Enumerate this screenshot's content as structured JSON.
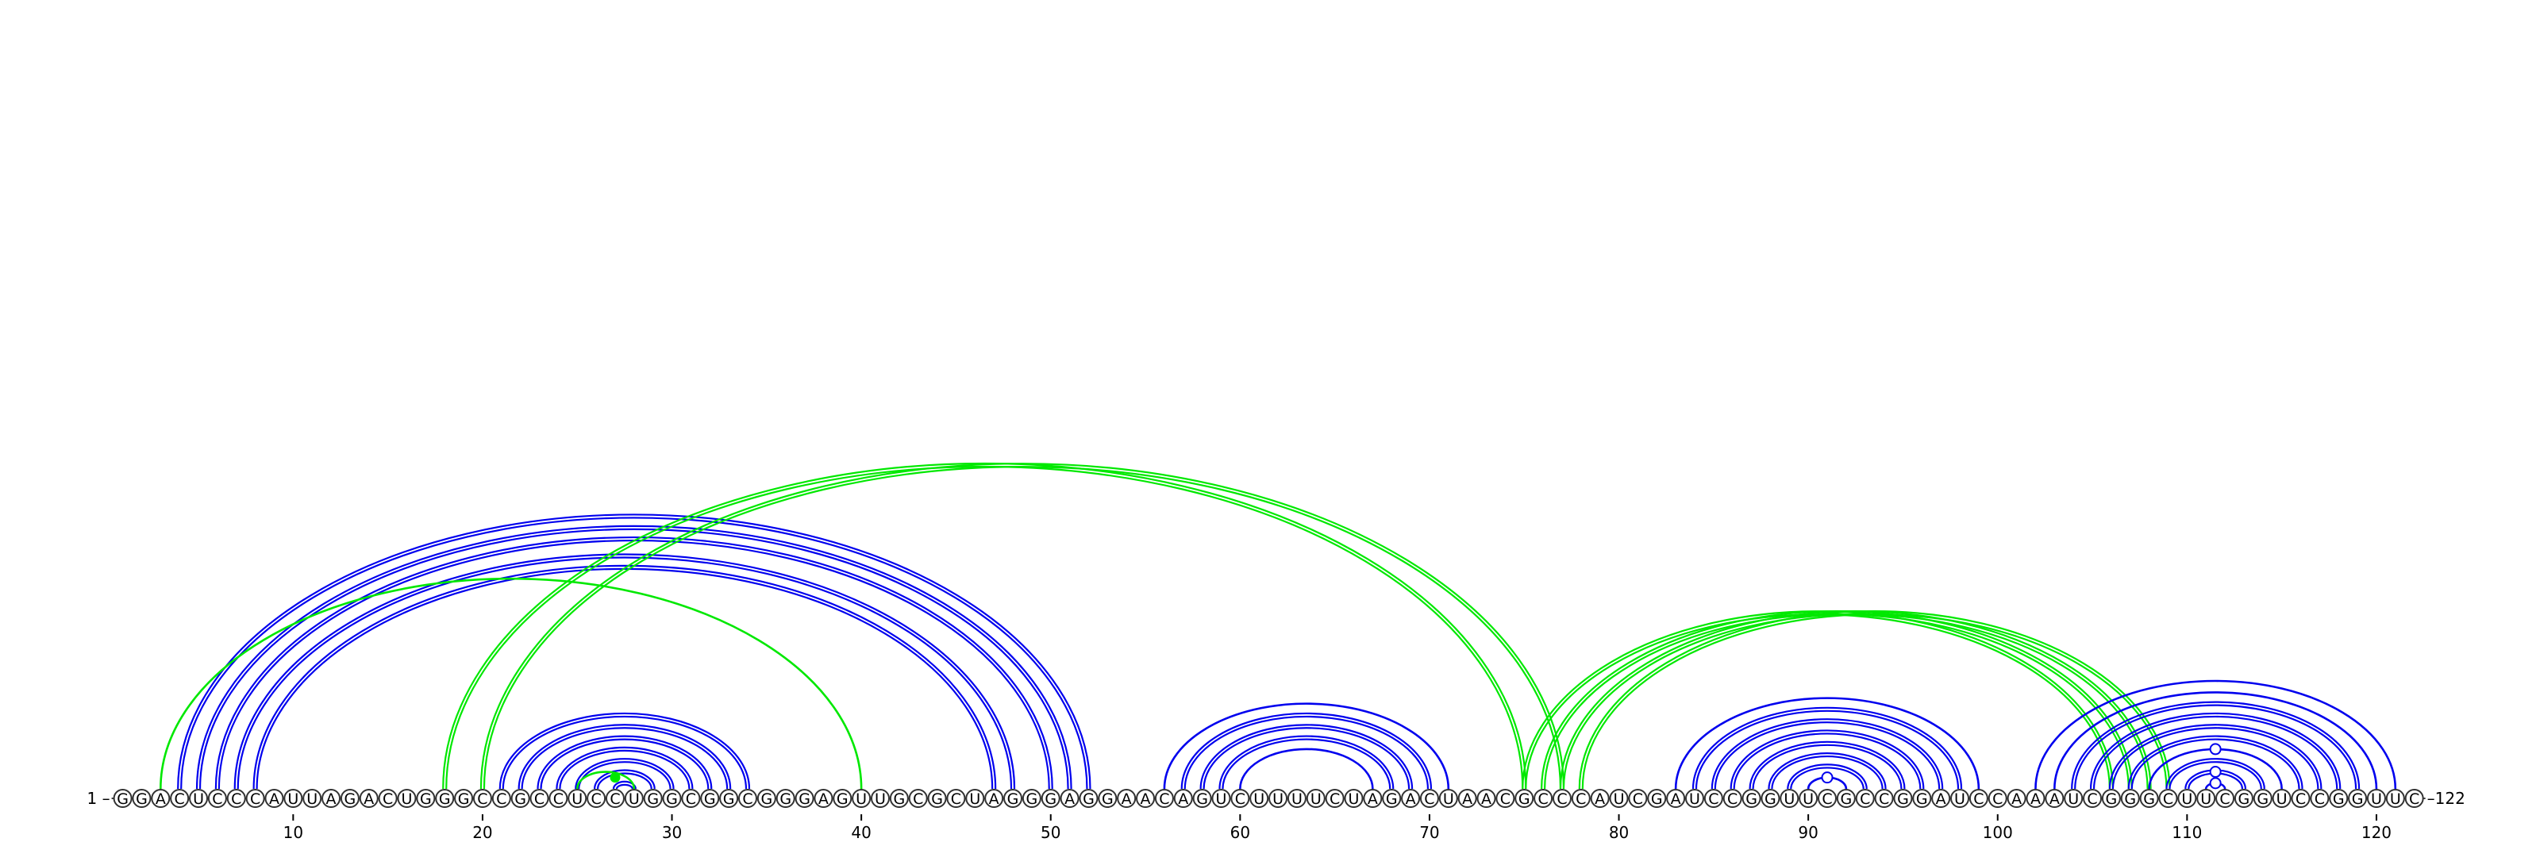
{
  "sequence": "GGACUCCCAUUAGACUGGGCCGCCUCCUGGCGGCGGGAGUUGCGCUAGGGAGGAACAGUCUUUUCUAGACUAACGCCCAUCGAUCCGGUUCGCCGGAUCCAAAUCGGGCUUCGGUCCGGUUC",
  "start_label": "1 –",
  "end_label": "–122",
  "ticks": [
    10,
    20,
    30,
    40,
    50,
    60,
    70,
    80,
    90,
    100,
    110,
    120
  ],
  "colors": {
    "blue": "#0000ee",
    "green": "#00e800",
    "nucleotide_outline": "#333333"
  },
  "arcs": [
    {
      "i": 5,
      "j": 51,
      "color": "blue",
      "style": "double"
    },
    {
      "i": 6,
      "j": 50,
      "color": "blue",
      "style": "double"
    },
    {
      "i": 4,
      "j": 52,
      "color": "blue",
      "style": "double"
    },
    {
      "i": 7,
      "j": 48,
      "color": "blue",
      "style": "double"
    },
    {
      "i": 8,
      "j": 47,
      "color": "blue",
      "style": "double"
    },
    {
      "i": 3,
      "j": 40,
      "color": "green",
      "style": "single"
    },
    {
      "i": 18,
      "j": 75,
      "color": "green",
      "style": "double"
    },
    {
      "i": 20,
      "j": 77,
      "color": "green",
      "style": "double"
    },
    {
      "i": 21,
      "j": 34,
      "color": "blue",
      "style": "double"
    },
    {
      "i": 22,
      "j": 33,
      "color": "blue",
      "style": "double"
    },
    {
      "i": 23,
      "j": 32,
      "color": "blue",
      "style": "double"
    },
    {
      "i": 24,
      "j": 31,
      "color": "blue",
      "style": "double"
    },
    {
      "i": 25,
      "j": 30,
      "color": "blue",
      "style": "double"
    },
    {
      "i": 26,
      "j": 29,
      "color": "blue",
      "style": "double"
    },
    {
      "i": 27,
      "j": 28,
      "color": "blue",
      "style": "double"
    },
    {
      "i": 25,
      "j": 28,
      "color": "green",
      "style": "single"
    },
    {
      "i": 56,
      "j": 71,
      "color": "blue",
      "style": "single"
    },
    {
      "i": 57,
      "j": 70,
      "color": "blue",
      "style": "double"
    },
    {
      "i": 58,
      "j": 69,
      "color": "blue",
      "style": "double"
    },
    {
      "i": 59,
      "j": 68,
      "color": "blue",
      "style": "double"
    },
    {
      "i": 60,
      "j": 67,
      "color": "blue",
      "style": "single"
    },
    {
      "i": 75,
      "j": 106,
      "color": "green",
      "style": "double"
    },
    {
      "i": 76,
      "j": 107,
      "color": "green",
      "style": "double"
    },
    {
      "i": 77,
      "j": 108,
      "color": "green",
      "style": "double"
    },
    {
      "i": 78,
      "j": 109,
      "color": "green",
      "style": "double"
    },
    {
      "i": 83,
      "j": 99,
      "color": "blue",
      "style": "single"
    },
    {
      "i": 84,
      "j": 98,
      "color": "blue",
      "style": "double"
    },
    {
      "i": 85,
      "j": 97,
      "color": "blue",
      "style": "double"
    },
    {
      "i": 86,
      "j": 96,
      "color": "blue",
      "style": "double"
    },
    {
      "i": 87,
      "j": 95,
      "color": "blue",
      "style": "double"
    },
    {
      "i": 88,
      "j": 94,
      "color": "blue",
      "style": "double"
    },
    {
      "i": 89,
      "j": 93,
      "color": "blue",
      "style": "double"
    },
    {
      "i": 90,
      "j": 92,
      "color": "blue",
      "style": "single"
    },
    {
      "i": 102,
      "j": 121,
      "color": "blue",
      "style": "single"
    },
    {
      "i": 103,
      "j": 120,
      "color": "blue",
      "style": "single"
    },
    {
      "i": 104,
      "j": 119,
      "color": "blue",
      "style": "double"
    },
    {
      "i": 105,
      "j": 118,
      "color": "blue",
      "style": "double"
    },
    {
      "i": 106,
      "j": 117,
      "color": "blue",
      "style": "double"
    },
    {
      "i": 107,
      "j": 116,
      "color": "blue",
      "style": "double"
    },
    {
      "i": 108,
      "j": 115,
      "color": "blue",
      "style": "single"
    },
    {
      "i": 109,
      "j": 114,
      "color": "blue",
      "style": "double"
    },
    {
      "i": 110,
      "j": 113,
      "color": "blue",
      "style": "double"
    },
    {
      "i": 111,
      "j": 112,
      "color": "blue",
      "style": "single"
    }
  ],
  "markers": [
    {
      "i": 26,
      "j": 28,
      "color": "green",
      "filled": true
    },
    {
      "i": 90,
      "j": 92,
      "color": "blue",
      "filled": false
    },
    {
      "i": 111,
      "j": 112,
      "color": "blue",
      "filled": false
    },
    {
      "i": 110,
      "j": 113,
      "color": "blue",
      "filled": false
    },
    {
      "i": 108,
      "j": 115,
      "color": "blue",
      "filled": false
    }
  ]
}
